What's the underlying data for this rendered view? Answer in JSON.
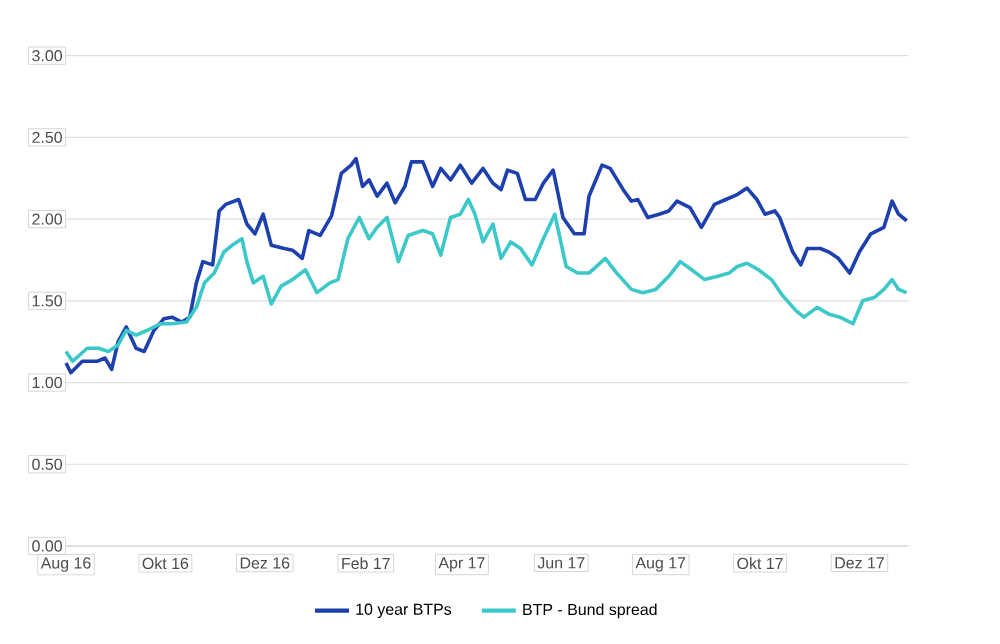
{
  "chart_data": {
    "type": "line",
    "xlim": [
      "2016-08-01",
      "2017-12-31"
    ],
    "xticks": [
      {
        "value": "2016-08-01",
        "label": "Aug 16"
      },
      {
        "value": "2016-10-01",
        "label": "Okt 16"
      },
      {
        "value": "2016-12-01",
        "label": "Dez 16"
      },
      {
        "value": "2017-02-01",
        "label": "Feb 17"
      },
      {
        "value": "2017-04-01",
        "label": "Apr 17"
      },
      {
        "value": "2017-06-01",
        "label": "Jun 17"
      },
      {
        "value": "2017-08-01",
        "label": "Aug 17"
      },
      {
        "value": "2017-10-01",
        "label": "Okt 17"
      },
      {
        "value": "2017-12-01",
        "label": "Dez 17"
      }
    ],
    "ylim": [
      0,
      3
    ],
    "yticks": [
      {
        "value": 0,
        "label": "0.00"
      },
      {
        "value": 0.5,
        "label": "0.50"
      },
      {
        "value": 1,
        "label": "1.00"
      },
      {
        "value": 1.5,
        "label": "1.50"
      },
      {
        "value": 2,
        "label": "2.00"
      },
      {
        "value": 2.5,
        "label": "2.50"
      },
      {
        "value": 3,
        "label": "3.00"
      }
    ],
    "grid": "y",
    "legend": "bottom",
    "marker": "none",
    "line_style": "solid",
    "series": [
      {
        "name": "10 year BTPs",
        "color": "#1e40af",
        "x": [
          "2016-08-01",
          "2016-08-04",
          "2016-08-11",
          "2016-08-20",
          "2016-08-25",
          "2016-08-29",
          "2016-09-02",
          "2016-09-07",
          "2016-09-13",
          "2016-09-18",
          "2016-09-24",
          "2016-09-30",
          "2016-10-05",
          "2016-10-11",
          "2016-10-16",
          "2016-10-20",
          "2016-10-24",
          "2016-10-30",
          "2016-11-03",
          "2016-11-07",
          "2016-11-15",
          "2016-11-20",
          "2016-11-25",
          "2016-11-30",
          "2016-12-05",
          "2016-12-13",
          "2016-12-18",
          "2016-12-24",
          "2016-12-28",
          "2017-01-04",
          "2017-01-11",
          "2017-01-17",
          "2017-01-23",
          "2017-01-26",
          "2017-01-30",
          "2017-02-03",
          "2017-02-08",
          "2017-02-14",
          "2017-02-19",
          "2017-02-25",
          "2017-03-01",
          "2017-03-08",
          "2017-03-14",
          "2017-03-19",
          "2017-03-25",
          "2017-03-31",
          "2017-04-07",
          "2017-04-14",
          "2017-04-20",
          "2017-04-25",
          "2017-04-29",
          "2017-05-05",
          "2017-05-10",
          "2017-05-16",
          "2017-05-21",
          "2017-05-27",
          "2017-06-02",
          "2017-06-09",
          "2017-06-15",
          "2017-06-18",
          "2017-06-26",
          "2017-07-01",
          "2017-07-09",
          "2017-07-14",
          "2017-07-18",
          "2017-07-24",
          "2017-07-31",
          "2017-08-06",
          "2017-08-11",
          "2017-08-19",
          "2017-08-26",
          "2017-09-03",
          "2017-09-10",
          "2017-09-17",
          "2017-09-23",
          "2017-09-29",
          "2017-10-04",
          "2017-10-10",
          "2017-10-13",
          "2017-10-21",
          "2017-10-26",
          "2017-10-30",
          "2017-11-07",
          "2017-11-12",
          "2017-11-18",
          "2017-11-25",
          "2017-12-01",
          "2017-12-08",
          "2017-12-16",
          "2017-12-21",
          "2017-12-25",
          "2017-12-30"
        ],
        "values": [
          1.12,
          1.06,
          1.13,
          1.13,
          1.15,
          1.08,
          1.25,
          1.34,
          1.21,
          1.19,
          1.32,
          1.39,
          1.4,
          1.37,
          1.4,
          1.61,
          1.74,
          1.72,
          2.05,
          2.09,
          2.12,
          1.97,
          1.91,
          2.03,
          1.84,
          1.82,
          1.81,
          1.76,
          1.93,
          1.9,
          2.02,
          2.28,
          2.33,
          2.37,
          2.2,
          2.24,
          2.14,
          2.22,
          2.1,
          2.2,
          2.35,
          2.35,
          2.2,
          2.31,
          2.24,
          2.33,
          2.22,
          2.31,
          2.22,
          2.18,
          2.3,
          2.28,
          2.12,
          2.12,
          2.22,
          2.3,
          2.01,
          1.91,
          1.91,
          2.14,
          2.33,
          2.31,
          2.18,
          2.11,
          2.12,
          2.01,
          2.03,
          2.05,
          2.11,
          2.07,
          1.95,
          2.09,
          2.12,
          2.15,
          2.19,
          2.12,
          2.03,
          2.05,
          2.01,
          1.8,
          1.72,
          1.82,
          1.82,
          1.8,
          1.76,
          1.67,
          1.8,
          1.91,
          1.95,
          2.11,
          2.03,
          1.99
        ]
      },
      {
        "name": "BTP - Bund spread",
        "color": "#3cc8c8",
        "x": [
          "2016-08-01",
          "2016-08-05",
          "2016-08-14",
          "2016-08-21",
          "2016-08-27",
          "2016-09-02",
          "2016-09-07",
          "2016-09-13",
          "2016-09-20",
          "2016-09-28",
          "2016-10-05",
          "2016-10-14",
          "2016-10-20",
          "2016-10-25",
          "2016-10-31",
          "2016-11-06",
          "2016-11-11",
          "2016-11-17",
          "2016-11-20",
          "2016-11-24",
          "2016-11-30",
          "2016-12-05",
          "2016-12-11",
          "2016-12-18",
          "2016-12-26",
          "2017-01-02",
          "2017-01-10",
          "2017-01-15",
          "2017-01-21",
          "2017-01-28",
          "2017-02-03",
          "2017-02-08",
          "2017-02-14",
          "2017-02-21",
          "2017-02-27",
          "2017-03-08",
          "2017-03-14",
          "2017-03-19",
          "2017-03-25",
          "2017-03-31",
          "2017-04-05",
          "2017-04-09",
          "2017-04-14",
          "2017-04-20",
          "2017-04-25",
          "2017-05-01",
          "2017-05-07",
          "2017-05-14",
          "2017-05-21",
          "2017-05-28",
          "2017-06-04",
          "2017-06-11",
          "2017-06-18",
          "2017-06-28",
          "2017-07-05",
          "2017-07-14",
          "2017-07-21",
          "2017-07-29",
          "2017-08-06",
          "2017-08-13",
          "2017-08-20",
          "2017-08-28",
          "2017-09-05",
          "2017-09-12",
          "2017-09-17",
          "2017-09-23",
          "2017-09-30",
          "2017-10-08",
          "2017-10-15",
          "2017-10-23",
          "2017-10-28",
          "2017-11-05",
          "2017-11-12",
          "2017-11-19",
          "2017-11-27",
          "2017-12-03",
          "2017-12-10",
          "2017-12-16",
          "2017-12-21",
          "2017-12-25",
          "2017-12-30"
        ],
        "values": [
          1.19,
          1.13,
          1.21,
          1.21,
          1.19,
          1.23,
          1.32,
          1.29,
          1.32,
          1.36,
          1.36,
          1.37,
          1.46,
          1.61,
          1.67,
          1.8,
          1.84,
          1.88,
          1.74,
          1.61,
          1.65,
          1.48,
          1.59,
          1.63,
          1.69,
          1.55,
          1.61,
          1.63,
          1.88,
          2.01,
          1.88,
          1.95,
          2.01,
          1.74,
          1.9,
          1.93,
          1.91,
          1.78,
          2.01,
          2.03,
          2.12,
          2.03,
          1.86,
          1.97,
          1.76,
          1.86,
          1.82,
          1.72,
          1.88,
          2.03,
          1.71,
          1.67,
          1.67,
          1.76,
          1.67,
          1.57,
          1.55,
          1.57,
          1.65,
          1.74,
          1.69,
          1.63,
          1.65,
          1.67,
          1.71,
          1.73,
          1.69,
          1.63,
          1.53,
          1.44,
          1.4,
          1.46,
          1.42,
          1.4,
          1.36,
          1.5,
          1.52,
          1.57,
          1.63,
          1.57,
          1.55
        ]
      }
    ]
  }
}
